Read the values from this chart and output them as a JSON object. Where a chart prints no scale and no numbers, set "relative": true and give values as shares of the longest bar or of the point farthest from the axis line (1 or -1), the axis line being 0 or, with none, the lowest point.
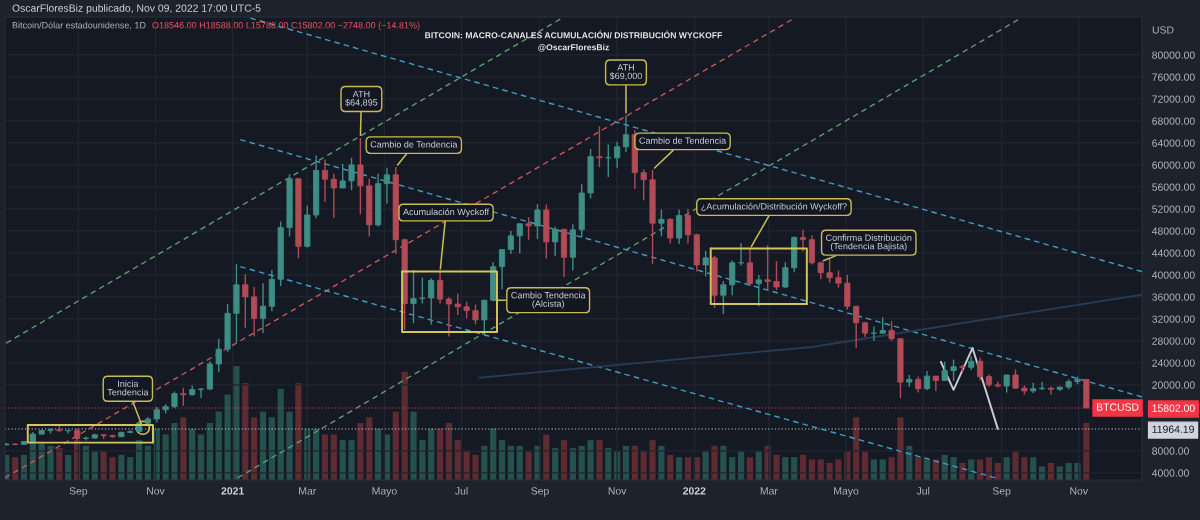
{
  "chart_data": [
    {
      "type": "candlestick",
      "title": "BITCOIN: MACRO-CANALES ACUMULACIÓN/ DISTRIBUCIÓN WYCKOFF",
      "subtitle": "@OscarFloresBiz",
      "ylabel": "USD",
      "x": [
        "2020-07-06",
        "2020-07-13",
        "2020-07-20",
        "2020-07-27",
        "2020-08-03",
        "2020-08-10",
        "2020-08-17",
        "2020-08-24",
        "2020-08-31",
        "2020-09-07",
        "2020-09-14",
        "2020-09-21",
        "2020-09-28",
        "2020-10-05",
        "2020-10-12",
        "2020-10-19",
        "2020-10-26",
        "2020-11-02",
        "2020-11-09",
        "2020-11-16",
        "2020-11-23",
        "2020-11-30",
        "2020-12-07",
        "2020-12-14",
        "2020-12-21",
        "2020-12-28",
        "2021-01-04",
        "2021-01-11",
        "2021-01-18",
        "2021-01-25",
        "2021-02-01",
        "2021-02-08",
        "2021-02-15",
        "2021-02-22",
        "2021-03-01",
        "2021-03-08",
        "2021-03-15",
        "2021-03-22",
        "2021-03-29",
        "2021-04-05",
        "2021-04-12",
        "2021-04-19",
        "2021-04-26",
        "2021-05-03",
        "2021-05-10",
        "2021-05-17",
        "2021-05-24",
        "2021-05-31",
        "2021-06-07",
        "2021-06-14",
        "2021-06-21",
        "2021-06-28",
        "2021-07-05",
        "2021-07-12",
        "2021-07-19",
        "2021-07-26",
        "2021-08-02",
        "2021-08-09",
        "2021-08-16",
        "2021-08-23",
        "2021-08-30",
        "2021-09-06",
        "2021-09-13",
        "2021-09-20",
        "2021-09-27",
        "2021-10-04",
        "2021-10-11",
        "2021-10-18",
        "2021-10-25",
        "2021-11-01",
        "2021-11-08",
        "2021-11-15",
        "2021-11-22",
        "2021-11-29",
        "2021-12-06",
        "2021-12-13",
        "2021-12-20",
        "2021-12-27",
        "2022-01-03",
        "2022-01-10",
        "2022-01-17",
        "2022-01-24",
        "2022-01-31",
        "2022-02-07",
        "2022-02-14",
        "2022-02-21",
        "2022-02-28",
        "2022-03-07",
        "2022-03-14",
        "2022-03-21",
        "2022-03-28",
        "2022-04-04",
        "2022-04-11",
        "2022-04-18",
        "2022-04-25",
        "2022-05-02",
        "2022-05-09",
        "2022-05-16",
        "2022-05-23",
        "2022-05-30",
        "2022-06-06",
        "2022-06-13",
        "2022-06-20",
        "2022-06-27",
        "2022-07-04",
        "2022-07-11",
        "2022-07-18",
        "2022-07-25",
        "2022-08-01",
        "2022-08-08",
        "2022-08-15",
        "2022-08-22",
        "2022-08-29",
        "2022-09-05",
        "2022-09-12",
        "2022-09-19",
        "2022-09-26",
        "2022-10-03",
        "2022-10-10",
        "2022-10-17",
        "2022-10-24",
        "2022-10-31",
        "2022-11-07"
      ],
      "ohlc": [
        [
          9070,
          9450,
          9060,
          9250
        ],
        [
          9250,
          9350,
          9000,
          9170
        ],
        [
          9170,
          9800,
          9100,
          9700
        ],
        [
          9700,
          11450,
          9650,
          11050
        ],
        [
          11050,
          11900,
          10950,
          11700
        ],
        [
          11700,
          12100,
          11150,
          11850
        ],
        [
          11850,
          12480,
          11500,
          11650
        ],
        [
          11650,
          11800,
          11150,
          11700
        ],
        [
          11700,
          12080,
          9870,
          10250
        ],
        [
          10250,
          10600,
          9880,
          10330
        ],
        [
          10330,
          11100,
          10200,
          10930
        ],
        [
          10930,
          10980,
          10130,
          10780
        ],
        [
          10780,
          10950,
          10400,
          10570
        ],
        [
          10570,
          11490,
          10520,
          11360
        ],
        [
          11360,
          11730,
          11200,
          11500
        ],
        [
          11500,
          13350,
          11420,
          13030
        ],
        [
          13030,
          14100,
          12900,
          13800
        ],
        [
          13800,
          15970,
          13200,
          15480
        ],
        [
          15480,
          16480,
          14800,
          16050
        ],
        [
          16050,
          18800,
          15800,
          18400
        ],
        [
          18400,
          19480,
          16200,
          18200
        ],
        [
          18200,
          19900,
          18000,
          19150
        ],
        [
          19150,
          19400,
          17600,
          19250
        ],
        [
          19250,
          24300,
          19000,
          23800
        ],
        [
          23800,
          28400,
          22300,
          26500
        ],
        [
          26500,
          34700,
          26000,
          33000
        ],
        [
          33000,
          41950,
          27700,
          38200
        ],
        [
          38200,
          40100,
          30400,
          36000
        ],
        [
          36000,
          37800,
          28800,
          32100
        ],
        [
          32100,
          38500,
          29400,
          34300
        ],
        [
          34300,
          40900,
          33400,
          39200
        ],
        [
          39200,
          49700,
          38000,
          48600
        ],
        [
          48600,
          58300,
          47000,
          57500
        ],
        [
          57500,
          57500,
          43000,
          45200
        ],
        [
          45200,
          52600,
          45000,
          50900
        ],
        [
          50900,
          61700,
          50300,
          59000
        ],
        [
          59000,
          61000,
          53300,
          57400
        ],
        [
          57400,
          58400,
          50400,
          55800
        ],
        [
          55800,
          60200,
          55800,
          57100
        ],
        [
          57100,
          61300,
          55400,
          60000
        ],
        [
          60000,
          64895,
          51000,
          56200
        ],
        [
          56200,
          57500,
          47000,
          49100
        ],
        [
          49100,
          58400,
          48800,
          56600
        ],
        [
          56600,
          59500,
          53000,
          58200
        ],
        [
          58200,
          59600,
          43800,
          46400
        ],
        [
          46400,
          46600,
          30000,
          34800
        ],
        [
          34800,
          40900,
          31200,
          35700
        ],
        [
          35700,
          39500,
          34800,
          35800
        ],
        [
          35800,
          39400,
          31000,
          39000
        ],
        [
          39000,
          40600,
          34800,
          35600
        ],
        [
          35600,
          36000,
          28800,
          34700
        ],
        [
          34700,
          36600,
          32700,
          34200
        ],
        [
          34200,
          35100,
          32100,
          33500
        ],
        [
          33500,
          34600,
          31000,
          31800
        ],
        [
          31800,
          35400,
          29300,
          35400
        ],
        [
          35400,
          42300,
          35200,
          41500
        ],
        [
          41500,
          44700,
          37400,
          44600
        ],
        [
          44600,
          48000,
          43800,
          47100
        ],
        [
          47100,
          49400,
          43900,
          49300
        ],
        [
          49300,
          50500,
          46400,
          48900
        ],
        [
          48900,
          52900,
          46500,
          51800
        ],
        [
          51800,
          52800,
          43000,
          46000
        ],
        [
          46000,
          48800,
          43400,
          48300
        ],
        [
          48300,
          48300,
          39600,
          43200
        ],
        [
          43200,
          49200,
          40800,
          48200
        ],
        [
          48200,
          56500,
          46900,
          54900
        ],
        [
          54900,
          62900,
          53900,
          61500
        ],
        [
          61500,
          67000,
          59600,
          61300
        ],
        [
          61300,
          63700,
          57800,
          61300
        ],
        [
          61300,
          64200,
          59400,
          63300
        ],
        [
          63300,
          69000,
          62300,
          65500
        ],
        [
          65500,
          66300,
          55600,
          58600
        ],
        [
          58600,
          59200,
          53600,
          57300
        ],
        [
          57300,
          59100,
          42000,
          49400
        ],
        [
          49400,
          51900,
          47000,
          50100
        ],
        [
          50100,
          50300,
          45700,
          46700
        ],
        [
          46700,
          51900,
          45600,
          50800
        ],
        [
          50800,
          52000,
          45700,
          47300
        ],
        [
          47300,
          47500,
          40600,
          41800
        ],
        [
          41800,
          44400,
          39700,
          43100
        ],
        [
          43100,
          43500,
          34000,
          36300
        ],
        [
          36300,
          38900,
          32900,
          38200
        ],
        [
          38200,
          42600,
          36300,
          42200
        ],
        [
          42200,
          45800,
          41700,
          42200
        ],
        [
          42200,
          44700,
          38000,
          38400
        ],
        [
          38400,
          40000,
          34300,
          39100
        ],
        [
          39100,
          45400,
          37300,
          38800
        ],
        [
          38800,
          42500,
          37200,
          37800
        ],
        [
          37800,
          42300,
          37600,
          41300
        ],
        [
          41300,
          47000,
          40500,
          46800
        ],
        [
          46800,
          48200,
          44300,
          46400
        ],
        [
          46400,
          47200,
          41900,
          42200
        ],
        [
          42200,
          42400,
          39200,
          40400
        ],
        [
          40400,
          42900,
          38600,
          39500
        ],
        [
          39500,
          40800,
          37700,
          38500
        ],
        [
          38500,
          40000,
          33700,
          34300
        ],
        [
          34300,
          34300,
          26700,
          31300
        ],
        [
          31300,
          31400,
          28700,
          29400
        ],
        [
          29400,
          30600,
          28000,
          29400
        ],
        [
          29400,
          32300,
          29300,
          29900
        ],
        [
          29900,
          31600,
          28000,
          28400
        ],
        [
          28400,
          28400,
          17600,
          20500
        ],
        [
          20500,
          21800,
          19600,
          21000
        ],
        [
          21000,
          21500,
          18600,
          19300
        ],
        [
          19300,
          22500,
          19000,
          21600
        ],
        [
          21600,
          21600,
          18900,
          20800
        ],
        [
          20800,
          24200,
          20700,
          22600
        ],
        [
          22600,
          24600,
          20700,
          23300
        ],
        [
          23300,
          23600,
          22400,
          23200
        ],
        [
          23200,
          25200,
          22700,
          24300
        ],
        [
          24300,
          25000,
          20800,
          21500
        ],
        [
          21500,
          21900,
          19600,
          20000
        ],
        [
          20000,
          20600,
          19500,
          19800
        ],
        [
          19800,
          21900,
          18600,
          21800
        ],
        [
          21800,
          22800,
          19300,
          19400
        ],
        [
          19400,
          19900,
          18200,
          18900
        ],
        [
          18900,
          20400,
          18500,
          19300
        ],
        [
          19300,
          20500,
          19000,
          19400
        ],
        [
          19400,
          19700,
          18200,
          19200
        ],
        [
          19200,
          19700,
          18900,
          19600
        ],
        [
          19600,
          21000,
          19200,
          20600
        ],
        [
          20600,
          21500,
          20100,
          21000
        ],
        [
          21000,
          21000,
          15788,
          15802
        ]
      ],
      "colors": [
        "#3e8e86",
        "#b24b56",
        "#3e8e86",
        "#3e8e86",
        "#3e8e86",
        "#3e8e86",
        "#b24b56",
        "#3e8e86",
        "#b24b56",
        "#3e8e86",
        "#3e8e86",
        "#b24b56",
        "#b24b56",
        "#3e8e86",
        "#3e8e86",
        "#3e8e86",
        "#3e8e86",
        "#3e8e86",
        "#3e8e86",
        "#3e8e86",
        "#b24b56",
        "#3e8e86",
        "#3e8e86",
        "#3e8e86",
        "#3e8e86",
        "#3e8e86",
        "#3e8e86",
        "#b24b56",
        "#b24b56",
        "#3e8e86",
        "#3e8e86",
        "#3e8e86",
        "#3e8e86",
        "#b24b56",
        "#3e8e86",
        "#3e8e86",
        "#b24b56",
        "#b24b56",
        "#3e8e86",
        "#3e8e86",
        "#b24b56",
        "#b24b56",
        "#3e8e86",
        "#3e8e86",
        "#b24b56",
        "#b24b56",
        "#3e8e86",
        "#3e8e86",
        "#3e8e86",
        "#b24b56",
        "#b24b56",
        "#b24b56",
        "#b24b56",
        "#b24b56",
        "#3e8e86",
        "#3e8e86",
        "#3e8e86",
        "#3e8e86",
        "#3e8e86",
        "#b24b56",
        "#3e8e86",
        "#b24b56",
        "#3e8e86",
        "#b24b56",
        "#3e8e86",
        "#3e8e86",
        "#3e8e86",
        "#b24b56",
        "#3e8e86",
        "#3e8e86",
        "#3e8e86",
        "#b24b56",
        "#b24b56",
        "#b24b56",
        "#3e8e86",
        "#b24b56",
        "#3e8e86",
        "#b24b56",
        "#b24b56",
        "#3e8e86",
        "#b24b56",
        "#3e8e86",
        "#3e8e86",
        "#3e8e86",
        "#b24b56",
        "#3e8e86",
        "#b24b56",
        "#b24b56",
        "#3e8e86",
        "#3e8e86",
        "#b24b56",
        "#b24b56",
        "#b24b56",
        "#b24b56",
        "#b24b56",
        "#b24b56",
        "#b24b56",
        "#b24b56",
        "#3e8e86",
        "#3e8e86",
        "#b24b56",
        "#b24b56",
        "#3e8e86",
        "#b24b56",
        "#3e8e86",
        "#b24b56",
        "#3e8e86",
        "#3e8e86",
        "#b24b56",
        "#3e8e86",
        "#b24b56",
        "#b24b56",
        "#b24b56",
        "#3e8e86",
        "#b24b56",
        "#b24b56",
        "#3e8e86",
        "#3e8e86",
        "#b24b56",
        "#3e8e86",
        "#3e8e86",
        "#3e8e86",
        "#b24b56"
      ],
      "series": [
        {
          "type": "line",
          "x": [
            "2020-07-06",
            "2021-09-17"
          ],
          "values": [
            27600,
            86500
          ],
          "color": "#5f9e6e",
          "line_style": "dashed"
        },
        {
          "type": "line",
          "x": [
            "2021-01-05",
            "2022-09-14"
          ],
          "values": [
            3100,
            86400
          ],
          "color": "#5f9e6e",
          "line_style": "dashed"
        },
        {
          "type": "line",
          "x": [
            "2020-07-05",
            "2022-03-19"
          ],
          "values": [
            3100,
            86400
          ],
          "color": "#c8575a",
          "line_style": "dashed"
        },
        {
          "type": "line",
          "x": [
            "2021-01-15",
            "2022-12-21"
          ],
          "values": [
            86700,
            40600
          ],
          "color": "#3f9fc6",
          "line_style": "dashed"
        },
        {
          "type": "line",
          "x": [
            "2021-01-07",
            "2022-12-21"
          ],
          "values": [
            64600,
            17800
          ],
          "color": "#3f9fc6",
          "line_style": "dashed"
        },
        {
          "type": "line",
          "x": [
            "2021-01-07",
            "2022-08-27"
          ],
          "values": [
            41500,
            3100
          ],
          "color": "#3f9fc6",
          "line_style": "dashed"
        },
        {
          "type": "line",
          "x": [
            "2021-07-15",
            "2022-04-04",
            "2022-12-21"
          ],
          "values": [
            21300,
            26900,
            36400
          ],
          "color": "#263c55",
          "line_style": "solid"
        },
        {
          "type": "line",
          "x": [
            "2022-07-15",
            "2022-07-25",
            "2022-08-09",
            "2022-08-29"
          ],
          "values": [
            24200,
            19100,
            26700,
            12000
          ],
          "color": "#c9cbd1",
          "line_style": "solid"
        },
        {
          "type": "line",
          "x": [
            "2020-07-23",
            "2020-10-30",
            "2020-10-30"
          ],
          "values": [
            12700,
            12700,
            9500
          ],
          "color": "#d4c65a",
          "line_style": "solid"
        },
        {
          "type": "line",
          "x": [
            "2020-07-23",
            "2020-07-23",
            "2020-10-30"
          ],
          "values": [
            12700,
            9500,
            9500
          ],
          "color": "#d4c65a",
          "line_style": "solid"
        },
        {
          "type": "line",
          "x": [
            "2021-05-15",
            "2021-07-29",
            "2021-07-29"
          ],
          "values": [
            40600,
            40600,
            29600
          ],
          "color": "#d4c65a",
          "line_style": "solid"
        },
        {
          "type": "line",
          "x": [
            "2021-05-15",
            "2021-05-15",
            "2021-07-29"
          ],
          "values": [
            40600,
            29600,
            29600
          ],
          "color": "#d4c65a",
          "line_style": "solid"
        },
        {
          "type": "line",
          "x": [
            "2022-01-14",
            "2022-03-31",
            "2022-03-31"
          ],
          "values": [
            44800,
            44800,
            34700
          ],
          "color": "#d4c65a",
          "line_style": "solid"
        },
        {
          "type": "line",
          "x": [
            "2022-01-14",
            "2022-01-14",
            "2022-03-31"
          ],
          "values": [
            44800,
            34700,
            34700
          ],
          "color": "#d4c65a",
          "line_style": "solid"
        },
        {
          "type": "scatter",
          "x": [
            "2020-10-22"
          ],
          "values": [
            12200
          ],
          "color": "#d4c65a",
          "marker": "circle"
        }
      ],
      "xlim": [
        "2020-07-05",
        "2022-12-21"
      ],
      "xticks": [
        {
          "value": "2020-09-01",
          "label": "Sep"
        },
        {
          "value": "2020-11-01",
          "label": "Nov"
        },
        {
          "value": "2021-01-01",
          "label": "2021"
        },
        {
          "value": "2021-03-01",
          "label": "Mar"
        },
        {
          "value": "2021-05-01",
          "label": "Mayo"
        },
        {
          "value": "2021-07-01",
          "label": "Jul"
        },
        {
          "value": "2021-09-01",
          "label": "Sep"
        },
        {
          "value": "2021-11-01",
          "label": "Nov"
        },
        {
          "value": "2022-01-01",
          "label": "2022"
        },
        {
          "value": "2022-03-01",
          "label": "Mar"
        },
        {
          "value": "2022-05-01",
          "label": "Mayo"
        },
        {
          "value": "2022-07-01",
          "label": "Jul"
        },
        {
          "value": "2022-09-01",
          "label": "Sep"
        },
        {
          "value": "2022-11-01",
          "label": "Nov"
        }
      ],
      "ylim": [
        2700,
        86900
      ],
      "yticks": [
        {
          "value": 4000,
          "label": "4000.00"
        },
        {
          "value": 8000,
          "label": "8000.00"
        },
        {
          "value": 11964.19,
          "label": "11964.19"
        },
        {
          "value": 15802,
          "label": "15802.00"
        },
        {
          "value": 20000,
          "label": "20000.00"
        },
        {
          "value": 24000,
          "label": "24000.00"
        },
        {
          "value": 28000,
          "label": "28000.00"
        },
        {
          "value": 32000,
          "label": "32000.00"
        },
        {
          "value": 36000,
          "label": "36000.00"
        },
        {
          "value": 40000,
          "label": "40000.00"
        },
        {
          "value": 44000,
          "label": "44000.00"
        },
        {
          "value": 48000,
          "label": "48000.00"
        },
        {
          "value": 52000,
          "label": "52000.00"
        },
        {
          "value": 56000,
          "label": "56000.00"
        },
        {
          "value": 60000,
          "label": "60000.00"
        },
        {
          "value": 64000,
          "label": "64000.00"
        },
        {
          "value": 68000,
          "label": "68000.00"
        },
        {
          "value": 72000,
          "label": "72000.00"
        },
        {
          "value": 76000,
          "label": "76000.00"
        },
        {
          "value": 80000,
          "label": "80000.00"
        }
      ],
      "grid": true,
      "ref_lines": [
        {
          "axis": "y",
          "value": 15802,
          "label": "BTCUSD",
          "color": "#f23645",
          "line_style": "dotted"
        },
        {
          "axis": "y",
          "value": 11964.19,
          "color": "#d1d4dc",
          "line_style": "dotted"
        }
      ],
      "annotations": [
        "OscarFloresBiz publicado, Nov 09, 2022 17:00 UTC-5",
        "Bitcoin/Dólar estadounidense, 1D",
        "O18546.00 H18588.00 L15788.00 C15802.00 −2748.00 (−14.81%)",
        {
          "text": "Inicia\nTendencia",
          "x": "2020-10-22",
          "y": 12200
        },
        {
          "text": "ATH\n$64,895",
          "x": "2021-04-12",
          "y": 64895
        },
        {
          "text": "Cambio de Tendencia",
          "x": "2021-05-10",
          "y": 59600
        },
        {
          "text": "Acumulación Wyckoff",
          "x": "2021-06-14",
          "y": 40600
        },
        {
          "text": "Cambio Tendencia\n(Alcista)",
          "x": "2021-07-26",
          "y": 35400
        },
        {
          "text": "ATH\n$69,000",
          "x": "2021-11-08",
          "y": 69000
        },
        {
          "text": "Cambio de Tendencia",
          "x": "2021-11-29",
          "y": 59100
        },
        {
          "text": "¿Acumulación/Distribución Wyckoff?",
          "x": "2022-02-14",
          "y": 44700
        },
        {
          "text": "Confirma Distribución\n(Tendencia Bajista)",
          "x": "2022-04-11",
          "y": 42400
        }
      ]
    },
    {
      "type": "bar",
      "relative": true,
      "tick_labels": false,
      "x": [
        "2020-07-06",
        "2020-07-13",
        "2020-07-20",
        "2020-07-27",
        "2020-08-03",
        "2020-08-10",
        "2020-08-17",
        "2020-08-24",
        "2020-08-31",
        "2020-09-07",
        "2020-09-14",
        "2020-09-21",
        "2020-09-28",
        "2020-10-05",
        "2020-10-12",
        "2020-10-19",
        "2020-10-26",
        "2020-11-02",
        "2020-11-09",
        "2020-11-16",
        "2020-11-23",
        "2020-11-30",
        "2020-12-07",
        "2020-12-14",
        "2020-12-21",
        "2020-12-28",
        "2021-01-04",
        "2021-01-11",
        "2021-01-18",
        "2021-01-25",
        "2021-02-01",
        "2021-02-08",
        "2021-02-15",
        "2021-02-22",
        "2021-03-01",
        "2021-03-08",
        "2021-03-15",
        "2021-03-22",
        "2021-03-29",
        "2021-04-05",
        "2021-04-12",
        "2021-04-19",
        "2021-04-26",
        "2021-05-03",
        "2021-05-10",
        "2021-05-17",
        "2021-05-24",
        "2021-05-31",
        "2021-06-07",
        "2021-06-14",
        "2021-06-21",
        "2021-06-28",
        "2021-07-05",
        "2021-07-12",
        "2021-07-19",
        "2021-07-26",
        "2021-08-02",
        "2021-08-09",
        "2021-08-16",
        "2021-08-23",
        "2021-08-30",
        "2021-09-06",
        "2021-09-13",
        "2021-09-20",
        "2021-09-27",
        "2021-10-04",
        "2021-10-11",
        "2021-10-18",
        "2021-10-25",
        "2021-11-01",
        "2021-11-08",
        "2021-11-15",
        "2021-11-22",
        "2021-11-29",
        "2021-12-06",
        "2021-12-13",
        "2021-12-20",
        "2021-12-27",
        "2022-01-03",
        "2022-01-10",
        "2022-01-17",
        "2022-01-24",
        "2022-01-31",
        "2022-02-07",
        "2022-02-14",
        "2022-02-21",
        "2022-02-28",
        "2022-03-07",
        "2022-03-14",
        "2022-03-21",
        "2022-03-28",
        "2022-04-04",
        "2022-04-11",
        "2022-04-18",
        "2022-04-25",
        "2022-05-02",
        "2022-05-09",
        "2022-05-16",
        "2022-05-23",
        "2022-05-30",
        "2022-06-06",
        "2022-06-13",
        "2022-06-20",
        "2022-06-27",
        "2022-07-04",
        "2022-07-11",
        "2022-07-18",
        "2022-07-25",
        "2022-08-01",
        "2022-08-08",
        "2022-08-15",
        "2022-08-22",
        "2022-08-29",
        "2022-09-05",
        "2022-09-12",
        "2022-09-19",
        "2022-09-26",
        "2022-10-03",
        "2022-10-10",
        "2022-10-17",
        "2022-10-24",
        "2022-10-31",
        "2022-11-07"
      ],
      "values": [
        0.22,
        0.2,
        0.22,
        0.4,
        0.32,
        0.3,
        0.28,
        0.22,
        0.35,
        0.3,
        0.25,
        0.25,
        0.2,
        0.22,
        0.2,
        0.35,
        0.3,
        0.45,
        0.4,
        0.5,
        0.55,
        0.45,
        0.4,
        0.5,
        0.6,
        0.75,
        1.0,
        0.85,
        0.55,
        0.6,
        0.55,
        0.8,
        0.6,
        0.85,
        0.45,
        0.45,
        0.4,
        0.4,
        0.35,
        0.35,
        0.5,
        0.55,
        0.45,
        0.4,
        0.6,
        0.95,
        0.6,
        0.35,
        0.45,
        0.45,
        0.5,
        0.35,
        0.25,
        0.22,
        0.3,
        0.45,
        0.35,
        0.3,
        0.3,
        0.25,
        0.3,
        0.4,
        0.28,
        0.35,
        0.28,
        0.3,
        0.35,
        0.35,
        0.28,
        0.25,
        0.3,
        0.3,
        0.25,
        0.35,
        0.3,
        0.22,
        0.2,
        0.2,
        0.2,
        0.25,
        0.3,
        0.3,
        0.2,
        0.25,
        0.2,
        0.25,
        0.3,
        0.22,
        0.2,
        0.2,
        0.22,
        0.18,
        0.18,
        0.15,
        0.18,
        0.25,
        0.55,
        0.25,
        0.18,
        0.18,
        0.2,
        0.55,
        0.3,
        0.2,
        0.18,
        0.18,
        0.22,
        0.2,
        0.15,
        0.18,
        0.18,
        0.2,
        0.15,
        0.2,
        0.25,
        0.2,
        0.2,
        0.12,
        0.15,
        0.12,
        0.15,
        0.15,
        0.5
      ],
      "colors": [
        "#24514d",
        "#5e2b33",
        "#24514d",
        "#24514d",
        "#24514d",
        "#24514d",
        "#5e2b33",
        "#24514d",
        "#5e2b33",
        "#24514d",
        "#24514d",
        "#5e2b33",
        "#5e2b33",
        "#24514d",
        "#24514d",
        "#24514d",
        "#24514d",
        "#24514d",
        "#24514d",
        "#24514d",
        "#5e2b33",
        "#24514d",
        "#24514d",
        "#24514d",
        "#24514d",
        "#24514d",
        "#24514d",
        "#5e2b33",
        "#5e2b33",
        "#24514d",
        "#24514d",
        "#24514d",
        "#24514d",
        "#5e2b33",
        "#24514d",
        "#24514d",
        "#5e2b33",
        "#5e2b33",
        "#24514d",
        "#24514d",
        "#5e2b33",
        "#5e2b33",
        "#24514d",
        "#24514d",
        "#5e2b33",
        "#5e2b33",
        "#24514d",
        "#24514d",
        "#24514d",
        "#5e2b33",
        "#5e2b33",
        "#5e2b33",
        "#5e2b33",
        "#5e2b33",
        "#24514d",
        "#24514d",
        "#24514d",
        "#24514d",
        "#24514d",
        "#5e2b33",
        "#24514d",
        "#5e2b33",
        "#24514d",
        "#5e2b33",
        "#24514d",
        "#24514d",
        "#24514d",
        "#5e2b33",
        "#24514d",
        "#24514d",
        "#24514d",
        "#5e2b33",
        "#5e2b33",
        "#5e2b33",
        "#24514d",
        "#5e2b33",
        "#24514d",
        "#5e2b33",
        "#5e2b33",
        "#24514d",
        "#5e2b33",
        "#24514d",
        "#24514d",
        "#24514d",
        "#5e2b33",
        "#24514d",
        "#5e2b33",
        "#5e2b33",
        "#24514d",
        "#24514d",
        "#5e2b33",
        "#5e2b33",
        "#5e2b33",
        "#5e2b33",
        "#5e2b33",
        "#5e2b33",
        "#5e2b33",
        "#5e2b33",
        "#24514d",
        "#24514d",
        "#5e2b33",
        "#5e2b33",
        "#24514d",
        "#5e2b33",
        "#24514d",
        "#5e2b33",
        "#24514d",
        "#24514d",
        "#5e2b33",
        "#24514d",
        "#5e2b33",
        "#5e2b33",
        "#5e2b33",
        "#24514d",
        "#5e2b33",
        "#5e2b33",
        "#24514d",
        "#24514d",
        "#5e2b33",
        "#24514d",
        "#24514d",
        "#24514d",
        "#5e2b33"
      ],
      "xlim": [
        "2020-07-05",
        "2022-12-21"
      ]
    }
  ]
}
